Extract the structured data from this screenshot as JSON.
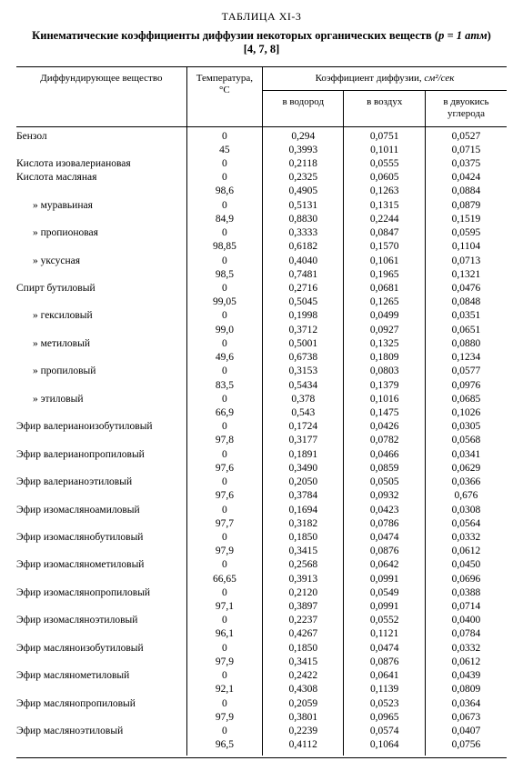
{
  "table_label": "ТАБЛИЦА XI-3",
  "title_prefix": "Кинематические коэффициенты диффузии некоторых органических веществ (",
  "title_param": "p = 1 атм",
  "title_suffix": ") [4, 7, 8]",
  "headers": {
    "substance": "Диффундирующее вещество",
    "temperature": "Температура, °С",
    "coeff_group": "Коэффициент диффузии,",
    "coeff_units": "см²/сек",
    "h2": "в водород",
    "air": "в воздух",
    "co2_l1": "в двуокись",
    "co2_l2": "углерода"
  },
  "rows": [
    {
      "s": "Бензол",
      "t": "0",
      "h": "0,294",
      "a": "0,0751",
      "c": "0,0527"
    },
    {
      "s": "",
      "t": "45",
      "h": "0,3993",
      "a": "0,1011",
      "c": "0,0715"
    },
    {
      "s": "Кислота изовалериановая",
      "t": "0",
      "h": "0,2118",
      "a": "0,0555",
      "c": "0,0375"
    },
    {
      "s": "Кислота масляная",
      "t": "0",
      "h": "0,2325",
      "a": "0,0605",
      "c": "0,0424"
    },
    {
      "s": "",
      "t": "98,6",
      "h": "0,4905",
      "a": "0,1263",
      "c": "0,0884"
    },
    {
      "s": "»   муравьиная",
      "ditto": true,
      "t": "0",
      "h": "0,5131",
      "a": "0,1315",
      "c": "0,0879"
    },
    {
      "s": "",
      "t": "84,9",
      "h": "0,8830",
      "a": "0,2244",
      "c": "0,1519"
    },
    {
      "s": "»   пропионовая",
      "ditto": true,
      "t": "0",
      "h": "0,3333",
      "a": "0,0847",
      "c": "0,0595"
    },
    {
      "s": "",
      "t": "98,85",
      "h": "0,6182",
      "a": "0,1570",
      "c": "0,1104"
    },
    {
      "s": "»   уксусная",
      "ditto": true,
      "t": "0",
      "h": "0,4040",
      "a": "0,1061",
      "c": "0,0713"
    },
    {
      "s": "",
      "t": "98,5",
      "h": "0,7481",
      "a": "0,1965",
      "c": "0,1321"
    },
    {
      "s": "Спирт бутиловый",
      "t": "0",
      "h": "0,2716",
      "a": "0,0681",
      "c": "0,0476"
    },
    {
      "s": "",
      "t": "99,05",
      "h": "0,5045",
      "a": "0,1265",
      "c": "0,0848"
    },
    {
      "s": "»   гексиловый",
      "ditto": true,
      "t": "0",
      "h": "0,1998",
      "a": "0,0499",
      "c": "0,0351"
    },
    {
      "s": "",
      "t": "99,0",
      "h": "0,3712",
      "a": "0,0927",
      "c": "0,0651"
    },
    {
      "s": "»   метиловый",
      "ditto": true,
      "t": "0",
      "h": "0,5001",
      "a": "0,1325",
      "c": "0,0880"
    },
    {
      "s": "",
      "t": "49,6",
      "h": "0,6738",
      "a": "0,1809",
      "c": "0,1234"
    },
    {
      "s": "»   пропиловый",
      "ditto": true,
      "t": "0",
      "h": "0,3153",
      "a": "0,0803",
      "c": "0,0577"
    },
    {
      "s": "",
      "t": "83,5",
      "h": "0,5434",
      "a": "0,1379",
      "c": "0,0976"
    },
    {
      "s": "»   этиловый",
      "ditto": true,
      "t": "0",
      "h": "0,378",
      "a": "0,1016",
      "c": "0,0685"
    },
    {
      "s": "",
      "t": "66,9",
      "h": "0,543",
      "a": "0,1475",
      "c": "0,1026"
    },
    {
      "s": "Эфир валерианоизобутиловый",
      "t": "0",
      "h": "0,1724",
      "a": "0,0426",
      "c": "0,0305"
    },
    {
      "s": "",
      "t": "97,8",
      "h": "0,3177",
      "a": "0,0782",
      "c": "0,0568"
    },
    {
      "s": "Эфир валерианопропиловый",
      "t": "0",
      "h": "0,1891",
      "a": "0,0466",
      "c": "0,0341"
    },
    {
      "s": "",
      "t": "97,6",
      "h": "0,3490",
      "a": "0,0859",
      "c": "0,0629"
    },
    {
      "s": "Эфир валерианоэтиловый",
      "t": "0",
      "h": "0,2050",
      "a": "0,0505",
      "c": "0,0366"
    },
    {
      "s": "",
      "t": "97,6",
      "h": "0,3784",
      "a": "0,0932",
      "c": "0,676"
    },
    {
      "s": "Эфир изомасляноамиловый",
      "t": "0",
      "h": "0,1694",
      "a": "0,0423",
      "c": "0,0308"
    },
    {
      "s": "",
      "t": "97,7",
      "h": "0,3182",
      "a": "0,0786",
      "c": "0,0564"
    },
    {
      "s": "Эфир изомаслянобутиловый",
      "t": "0",
      "h": "0,1850",
      "a": "0,0474",
      "c": "0,0332"
    },
    {
      "s": "",
      "t": "97,9",
      "h": "0,3415",
      "a": "0,0876",
      "c": "0,0612"
    },
    {
      "s": "Эфир изомасляномeтиловый",
      "t": "0",
      "h": "0,2568",
      "a": "0,0642",
      "c": "0,0450"
    },
    {
      "s": "",
      "t": "66,65",
      "h": "0,3913",
      "a": "0,0991",
      "c": "0,0696"
    },
    {
      "s": "Эфир изомаслянопропиловый",
      "t": "0",
      "h": "0,2120",
      "a": "0,0549",
      "c": "0,0388"
    },
    {
      "s": "",
      "t": "97,1",
      "h": "0,3897",
      "a": "0,0991",
      "c": "0,0714"
    },
    {
      "s": "Эфир изомасляноэтиловый",
      "t": "0",
      "h": "0,2237",
      "a": "0,0552",
      "c": "0,0400"
    },
    {
      "s": "",
      "t": "96,1",
      "h": "0,4267",
      "a": "0,1121",
      "c": "0,0784"
    },
    {
      "s": "Эфир масляноизобутиловый",
      "t": "0",
      "h": "0,1850",
      "a": "0,0474",
      "c": "0,0332"
    },
    {
      "s": "",
      "t": "97,9",
      "h": "0,3415",
      "a": "0,0876",
      "c": "0,0612"
    },
    {
      "s": "Эфир масляномeтиловый",
      "t": "0",
      "h": "0,2422",
      "a": "0,0641",
      "c": "0,0439"
    },
    {
      "s": "",
      "t": "92,1",
      "h": "0,4308",
      "a": "0,1139",
      "c": "0,0809"
    },
    {
      "s": "Эфир маслянопропиловый",
      "t": "0",
      "h": "0,2059",
      "a": "0,0523",
      "c": "0,0364"
    },
    {
      "s": "",
      "t": "97,9",
      "h": "0,3801",
      "a": "0,0965",
      "c": "0,0673"
    },
    {
      "s": "Эфир масляноэтиловый",
      "t": "0",
      "h": "0,2239",
      "a": "0,0574",
      "c": "0,0407"
    },
    {
      "s": "",
      "t": "96,5",
      "h": "0,4112",
      "a": "0,1064",
      "c": "0,0756"
    }
  ]
}
